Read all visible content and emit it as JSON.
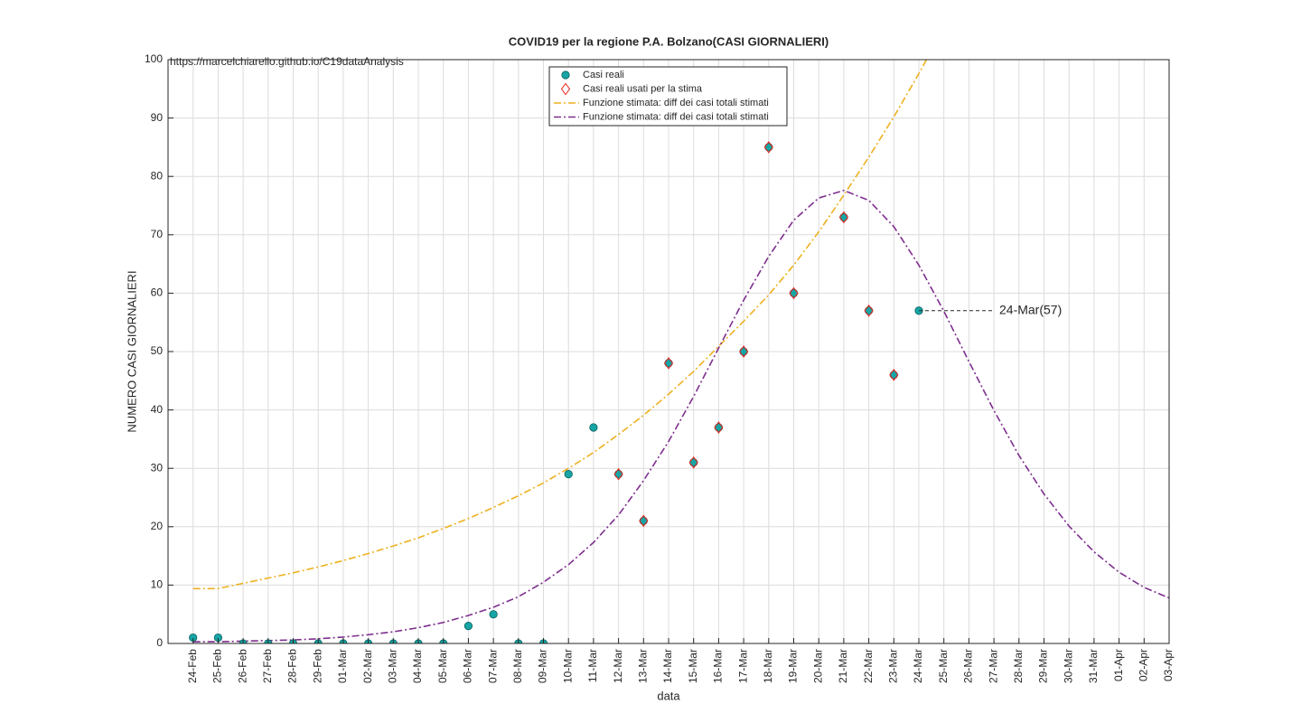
{
  "chart_data": {
    "type": "line",
    "title": "COVID19 per la regione P.A. Bolzano(CASI GIORNALIERI)",
    "subtitle": "https://marcelchiarello.github.io/C19dataAnalysis",
    "x_label": "data",
    "y_label": "NUMERO CASI GIORNALIERI",
    "categories": [
      "24-Feb",
      "25-Feb",
      "26-Feb",
      "27-Feb",
      "28-Feb",
      "29-Feb",
      "01-Mar",
      "02-Mar",
      "03-Mar",
      "04-Mar",
      "05-Mar",
      "06-Mar",
      "07-Mar",
      "08-Mar",
      "09-Mar",
      "10-Mar",
      "11-Mar",
      "12-Mar",
      "13-Mar",
      "14-Mar",
      "15-Mar",
      "16-Mar",
      "17-Mar",
      "18-Mar",
      "19-Mar",
      "20-Mar",
      "21-Mar",
      "22-Mar",
      "23-Mar",
      "24-Mar",
      "25-Mar",
      "26-Mar",
      "27-Mar",
      "28-Mar",
      "29-Mar",
      "30-Mar",
      "31-Mar",
      "01-Apr",
      "02-Apr",
      "03-Apr"
    ],
    "series": [
      {
        "name": "Casi reali",
        "color": "#17a5a5",
        "marker": "circle",
        "values": [
          1,
          1,
          0,
          0,
          0,
          0,
          0,
          0,
          0,
          0,
          0,
          3,
          5,
          0,
          0,
          29,
          37,
          29,
          21,
          48,
          31,
          37,
          50,
          85,
          60,
          null,
          73,
          57,
          46,
          57,
          null,
          null,
          null,
          null,
          null,
          null,
          null,
          null,
          null,
          null
        ]
      },
      {
        "name": "Casi reali usati per la stima",
        "color": "#e8221a",
        "marker": "diamond",
        "values": [
          null,
          null,
          null,
          null,
          null,
          null,
          null,
          null,
          null,
          null,
          null,
          null,
          null,
          null,
          null,
          null,
          null,
          29,
          21,
          48,
          31,
          37,
          50,
          85,
          60,
          null,
          73,
          57,
          46,
          null,
          null,
          null,
          null,
          null,
          null,
          null,
          null,
          null,
          null,
          null
        ]
      },
      {
        "name": "Funzione stimata: diff dei casi totali stimati",
        "color": "#edb120",
        "dash": "8 3 2 3",
        "values": [
          9.4,
          9.4,
          10.3,
          11.2,
          12.1,
          13.1,
          14.2,
          15.4,
          16.7,
          18.1,
          19.7,
          21.4,
          23.3,
          25.3,
          27.5,
          30.0,
          32.7,
          35.8,
          39.1,
          42.7,
          46.6,
          50.9,
          55.2,
          59.7,
          64.8,
          70.5,
          76.8,
          83.3,
          90.2,
          97.6,
          105.5,
          null,
          null,
          null,
          null,
          null,
          null,
          null,
          null,
          null
        ]
      },
      {
        "name": "Funzione stimata: diff dei casi totali stimati",
        "color": "#7e2f8e",
        "dash": "8 3 2 3",
        "values": [
          0.3,
          0.3,
          0.4,
          0.5,
          0.6,
          0.8,
          1.1,
          1.5,
          2.0,
          2.7,
          3.6,
          4.8,
          6.2,
          8.0,
          10.5,
          13.5,
          17.3,
          22.0,
          27.9,
          34.6,
          42.3,
          50.6,
          58.8,
          66.3,
          72.5,
          76.3,
          77.6,
          75.9,
          71.4,
          64.8,
          56.9,
          48.3,
          39.9,
          32.2,
          25.6,
          20.1,
          15.7,
          12.2,
          9.6,
          7.8
        ]
      }
    ],
    "annotations": [
      {
        "text": "24-Mar(57)",
        "x": "24-Mar",
        "y": 57
      }
    ],
    "ylim": [
      0,
      100
    ],
    "yticks": [
      0,
      10,
      20,
      30,
      40,
      50,
      60,
      70,
      80,
      90,
      100
    ],
    "grid": true,
    "legend": "top"
  }
}
